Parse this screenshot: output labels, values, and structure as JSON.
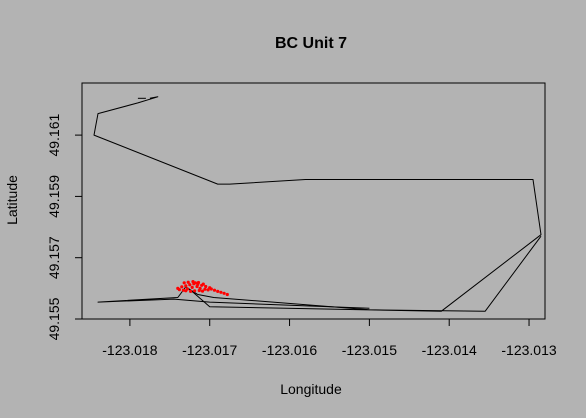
{
  "chart_data": {
    "type": "line",
    "title": "BC Unit 7",
    "xlabel": "Longitude",
    "ylabel": "Latitude",
    "xlim": [
      -123.0186,
      -123.0128
    ],
    "ylim": [
      49.155,
      49.1627
    ],
    "xticks": [
      -123.018,
      -123.017,
      -123.016,
      -123.015,
      -123.014,
      -123.013
    ],
    "xtick_labels": [
      "-123.018",
      "-123.017",
      "-123.016",
      "-123.015",
      "-123.014",
      "-123.013"
    ],
    "yticks": [
      49.155,
      49.157,
      49.159,
      49.161
    ],
    "ytick_labels": [
      "49.155",
      "49.157",
      "49.159",
      "49.161"
    ],
    "grid": false,
    "colors": {
      "background": "#b3b3b3",
      "track": "#000000",
      "points": "#ff0000"
    },
    "series": [
      {
        "type": "line",
        "color": "#000000",
        "x": [
          -123.01775,
          -123.01765,
          -123.0179,
          -123.0184,
          -123.01845,
          -123.0169,
          -123.01675,
          -123.0158,
          -123.01295,
          -123.01285,
          -123.0141,
          -123.017,
          -123.0172,
          -123.0173,
          -123.01715,
          -123.01695,
          -123.015,
          -123.01355,
          -123.01285
        ],
        "y": [
          49.1622,
          49.16225,
          49.16205,
          49.1617,
          49.161,
          49.1594,
          49.1594,
          49.15955,
          49.15955,
          49.15775,
          49.15525,
          49.1554,
          49.15585,
          49.15605,
          49.1558,
          49.1557,
          49.1553,
          49.15525,
          49.1577
        ]
      },
      {
        "type": "line",
        "color": "#000000",
        "x": [
          -123.0179,
          -123.0178
        ],
        "y": [
          49.1622,
          49.1622
        ]
      },
      {
        "type": "line",
        "color": "#000000",
        "x": [
          -123.0173,
          -123.0174,
          -123.0184,
          -123.01745,
          -123.017,
          -123.015
        ],
        "y": [
          49.15605,
          49.1557,
          49.15555,
          49.15565,
          49.15555,
          49.15535
        ]
      },
      {
        "type": "scatter",
        "color": "#ff0000",
        "x": [
          -123.0174,
          -123.01735,
          -123.0173,
          -123.01725,
          -123.0172,
          -123.01715,
          -123.0171,
          -123.01705,
          -123.017,
          -123.01738,
          -123.01733,
          -123.01728,
          -123.01722,
          -123.01716,
          -123.01712,
          -123.01706,
          -123.01702,
          -123.01732,
          -123.01727,
          -123.01721,
          -123.01718,
          -123.01714,
          -123.01708,
          -123.0173,
          -123.01724,
          -123.01719,
          -123.01713,
          -123.01709,
          -123.01698,
          -123.01694,
          -123.0169,
          -123.01686,
          -123.01682,
          -123.01678
        ],
        "y": [
          49.156,
          49.15605,
          49.15608,
          49.15612,
          49.15615,
          49.15613,
          49.1561,
          49.15606,
          49.15602,
          49.15596,
          49.15594,
          49.15598,
          49.15603,
          49.15606,
          49.156,
          49.15597,
          49.15595,
          49.15618,
          49.1562,
          49.15622,
          49.15618,
          49.15619,
          49.15614,
          49.15592,
          49.1559,
          49.15592,
          49.15593,
          49.15591,
          49.15598,
          49.15594,
          49.1559,
          49.15587,
          49.15584,
          49.1558
        ]
      }
    ]
  }
}
